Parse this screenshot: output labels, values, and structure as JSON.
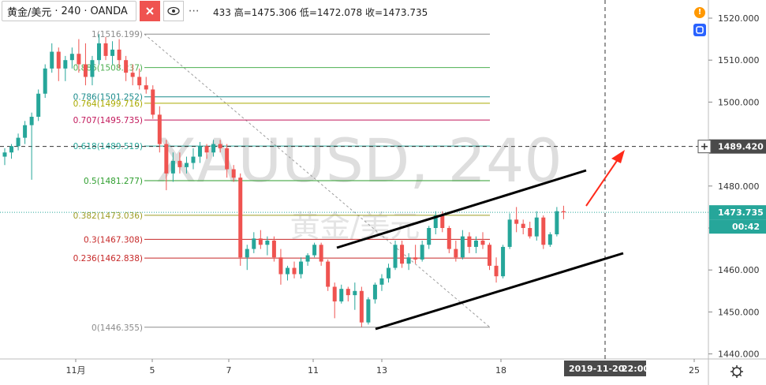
{
  "header": {
    "symbol": "黄金/美元",
    "separator1": "·",
    "interval": "240",
    "separator2": "·",
    "broker": "OANDA",
    "more": "⋯",
    "ohlc": "433 高=1475.306 低=1472.078 收=1473.735"
  },
  "watermark": {
    "main": "XAUUSD, 240",
    "sub": "黄金/美元"
  },
  "price_axis": {
    "ticks": [
      "1520.000",
      "1510.000",
      "1500.000",
      "1490.000",
      "1480.000",
      "1470.000",
      "1460.000",
      "1450.000",
      "1440.000"
    ],
    "crosshair_label": "1489.420",
    "last_price_label": "1473.735",
    "countdown_label": "00:42"
  },
  "time_axis": {
    "ticks": [
      "11月",
      "5",
      "7",
      "11",
      "13",
      "18",
      "25"
    ],
    "crosshair_label": "2019-11-20",
    "crosshair_time": "22:00"
  },
  "fib_levels": [
    {
      "label": "1(1516.199)",
      "price": 1516.199,
      "color": "#8c8c8c"
    },
    {
      "label": "0.886(1508.237)",
      "price": 1508.237,
      "color": "#4caf50"
    },
    {
      "label": "0.786(1501.252)",
      "price": 1501.252,
      "color": "#1c8c8c"
    },
    {
      "label": "0.764(1499.716)",
      "price": 1499.716,
      "color": "#aaaa00"
    },
    {
      "label": "0.707(1495.735)",
      "price": 1495.735,
      "color": "#c2185b"
    },
    {
      "label": "0.618(1489.519)",
      "price": 1489.519,
      "color": "#26a69a"
    },
    {
      "label": "0.5(1481.277)",
      "price": 1481.277,
      "color": "#2e9e2e"
    },
    {
      "label": "0.382(1473.036)",
      "price": 1473.036,
      "color": "#9e9d24"
    },
    {
      "label": "0.3(1467.308)",
      "price": 1467.308,
      "color": "#c62828"
    },
    {
      "label": "0.236(1462.838)",
      "price": 1462.838,
      "color": "#c62828"
    },
    {
      "label": "0(1446.355)",
      "price": 1446.355,
      "color": "#8c8c8c"
    }
  ],
  "colors": {
    "up": "#26a69a",
    "down": "#ef5350",
    "channel": "#000000",
    "arrow": "#ff2a1a",
    "last_price": "#26a69a",
    "crosshair": "#333333"
  },
  "chart_data": {
    "type": "candlestick",
    "title": "XAUUSD, 240",
    "ylim": [
      1439.5,
      1524.5
    ],
    "ohlc": [
      [
        1487.0,
        1489.0,
        1485.0,
        1488.0
      ],
      [
        1488.0,
        1490.0,
        1486.5,
        1489.5
      ],
      [
        1489.5,
        1492.5,
        1488.5,
        1491.5
      ],
      [
        1491.5,
        1495.5,
        1490.0,
        1494.5
      ],
      [
        1494.5,
        1497.5,
        1481.5,
        1496.5
      ],
      [
        1496.5,
        1503.0,
        1495.5,
        1502.0
      ],
      [
        1502.0,
        1509.0,
        1501.0,
        1508.0
      ],
      [
        1508.0,
        1514.0,
        1507.0,
        1512.0
      ],
      [
        1512.0,
        1513.0,
        1505.0,
        1508.0
      ],
      [
        1508.0,
        1511.0,
        1505.0,
        1510.0
      ],
      [
        1510.0,
        1513.0,
        1508.0,
        1511.5
      ],
      [
        1511.5,
        1515.0,
        1507.0,
        1509.0
      ],
      [
        1509.0,
        1514.0,
        1504.0,
        1506.0
      ],
      [
        1506.0,
        1511.0,
        1504.0,
        1510.0
      ],
      [
        1510.0,
        1516.2,
        1509.0,
        1514.0
      ],
      [
        1514.0,
        1515.5,
        1510.0,
        1511.0
      ],
      [
        1511.0,
        1514.5,
        1509.0,
        1512.5
      ],
      [
        1512.5,
        1515.0,
        1508.0,
        1510.0
      ],
      [
        1510.0,
        1511.0,
        1505.0,
        1507.0
      ],
      [
        1507.0,
        1509.0,
        1504.0,
        1506.0
      ],
      [
        1506.0,
        1508.0,
        1503.0,
        1504.0
      ],
      [
        1504.0,
        1506.0,
        1502.0,
        1503.0
      ],
      [
        1503.0,
        1504.0,
        1496.0,
        1497.0
      ],
      [
        1497.0,
        1499.0,
        1488.0,
        1490.0
      ],
      [
        1490.0,
        1491.0,
        1479.0,
        1483.0
      ],
      [
        1483.0,
        1488.0,
        1481.0,
        1486.0
      ],
      [
        1486.0,
        1488.0,
        1483.0,
        1484.5
      ],
      [
        1484.5,
        1487.0,
        1483.0,
        1485.5
      ],
      [
        1485.5,
        1489.0,
        1484.0,
        1487.0
      ],
      [
        1487.0,
        1490.5,
        1485.5,
        1489.5
      ],
      [
        1489.5,
        1490.0,
        1486.5,
        1488.0
      ],
      [
        1488.0,
        1491.0,
        1487.0,
        1490.0
      ],
      [
        1490.0,
        1491.0,
        1488.0,
        1489.0
      ],
      [
        1489.0,
        1490.0,
        1482.0,
        1484.0
      ],
      [
        1484.0,
        1485.0,
        1481.0,
        1482.0
      ],
      [
        1482.0,
        1483.0,
        1461.0,
        1463.0
      ],
      [
        1463.0,
        1466.0,
        1460.0,
        1465.0
      ],
      [
        1465.0,
        1469.0,
        1464.0,
        1467.5
      ],
      [
        1467.5,
        1469.5,
        1465.0,
        1466.0
      ],
      [
        1466.0,
        1468.0,
        1463.5,
        1467.0
      ],
      [
        1467.0,
        1468.0,
        1462.0,
        1463.0
      ],
      [
        1463.0,
        1465.0,
        1456.5,
        1459.0
      ],
      [
        1459.0,
        1461.0,
        1457.5,
        1460.5
      ],
      [
        1460.5,
        1462.0,
        1458.0,
        1459.0
      ],
      [
        1459.0,
        1463.0,
        1458.0,
        1462.0
      ],
      [
        1462.0,
        1464.0,
        1461.0,
        1463.5
      ],
      [
        1463.5,
        1466.5,
        1463.0,
        1466.0
      ],
      [
        1466.0,
        1466.5,
        1461.0,
        1462.0
      ],
      [
        1462.0,
        1462.5,
        1455.0,
        1456.0
      ],
      [
        1456.0,
        1457.0,
        1448.5,
        1452.5
      ],
      [
        1452.5,
        1456.5,
        1452.0,
        1455.5
      ],
      [
        1455.5,
        1456.0,
        1452.5,
        1454.0
      ],
      [
        1454.0,
        1457.0,
        1450.5,
        1455.0
      ],
      [
        1455.0,
        1456.0,
        1446.4,
        1447.5
      ],
      [
        1447.5,
        1453.5,
        1447.0,
        1453.0
      ],
      [
        1453.0,
        1457.0,
        1452.0,
        1456.5
      ],
      [
        1456.5,
        1459.0,
        1455.0,
        1458.0
      ],
      [
        1458.0,
        1461.5,
        1457.0,
        1460.5
      ],
      [
        1460.5,
        1467.0,
        1460.0,
        1466.0
      ],
      [
        1466.0,
        1467.0,
        1460.5,
        1461.5
      ],
      [
        1461.5,
        1464.0,
        1460.0,
        1463.0
      ],
      [
        1463.0,
        1466.0,
        1461.5,
        1462.5
      ],
      [
        1462.5,
        1467.0,
        1462.0,
        1466.0
      ],
      [
        1466.0,
        1470.5,
        1465.0,
        1470.0
      ],
      [
        1470.0,
        1474.0,
        1468.5,
        1473.0
      ],
      [
        1473.0,
        1474.0,
        1469.0,
        1470.0
      ],
      [
        1470.0,
        1470.5,
        1464.0,
        1465.0
      ],
      [
        1465.0,
        1467.0,
        1462.0,
        1463.0
      ],
      [
        1463.0,
        1469.5,
        1462.5,
        1468.0
      ],
      [
        1468.0,
        1469.0,
        1464.0,
        1465.5
      ],
      [
        1465.5,
        1468.0,
        1464.0,
        1467.0
      ],
      [
        1467.0,
        1469.0,
        1465.0,
        1466.0
      ],
      [
        1466.0,
        1466.5,
        1460.0,
        1461.0
      ],
      [
        1461.0,
        1463.0,
        1457.0,
        1458.5
      ],
      [
        1458.5,
        1466.0,
        1458.0,
        1465.5
      ],
      [
        1465.5,
        1473.5,
        1465.0,
        1472.0
      ],
      [
        1472.0,
        1475.0,
        1469.0,
        1471.0
      ],
      [
        1471.0,
        1472.0,
        1468.5,
        1470.0
      ],
      [
        1470.0,
        1471.5,
        1467.5,
        1468.0
      ],
      [
        1468.0,
        1474.0,
        1467.0,
        1472.5
      ],
      [
        1472.5,
        1473.0,
        1465.0,
        1466.0
      ],
      [
        1466.0,
        1469.0,
        1465.5,
        1468.5
      ],
      [
        1468.5,
        1475.0,
        1468.0,
        1474.0
      ],
      [
        1474.0,
        1475.3,
        1472.1,
        1473.735
      ]
    ]
  }
}
